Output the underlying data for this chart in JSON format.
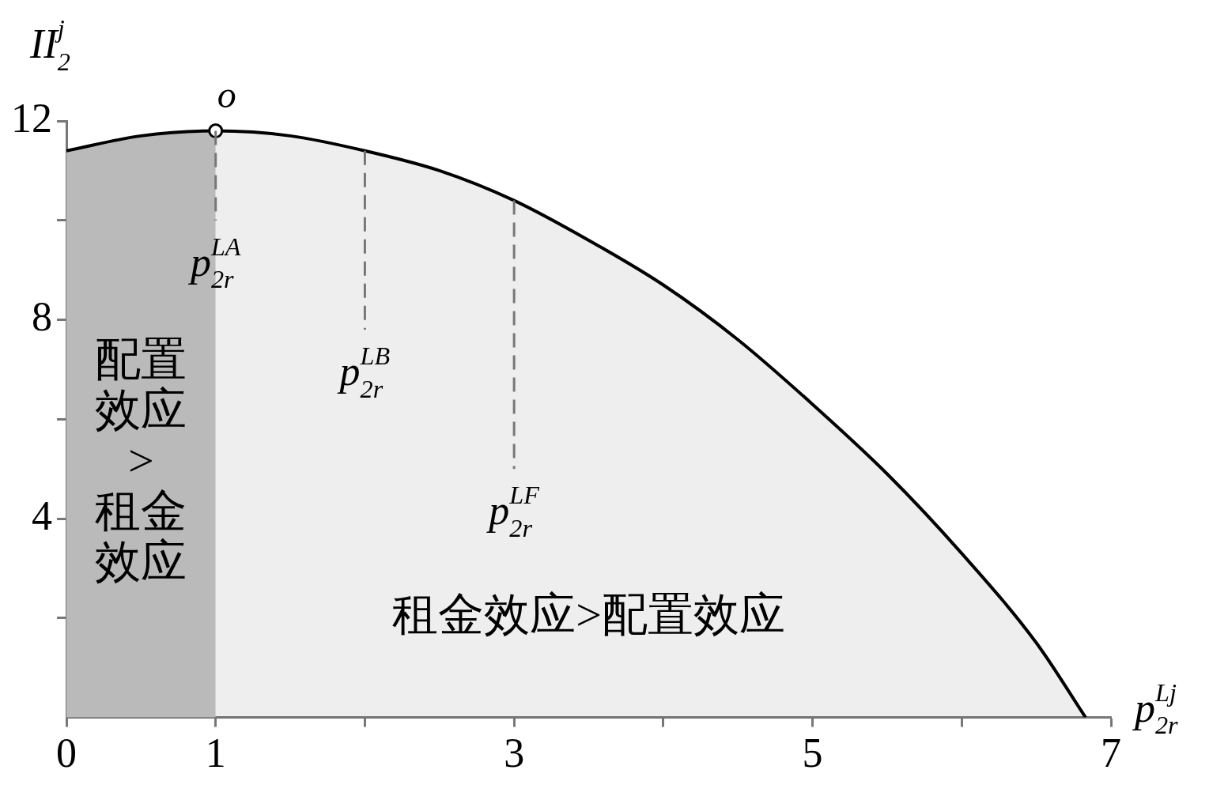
{
  "chart_data": {
    "type": "area",
    "xlabel": "p$_{2r}$$^{Lj}$",
    "ylabel": "II$_{2}$$^{j}$",
    "xlim": [
      0,
      7
    ],
    "ylim": [
      0,
      12
    ],
    "xticks": [
      0,
      1,
      {
        "value": 2,
        "label": null
      },
      3,
      {
        "value": 4,
        "label": null
      },
      5,
      {
        "value": 6,
        "label": null
      },
      7
    ],
    "yticks": [
      {
        "value": 2,
        "label": null
      },
      4,
      {
        "value": 6,
        "label": null
      },
      8,
      {
        "value": 10,
        "label": null
      },
      12
    ],
    "grid": false,
    "legend": false,
    "series": [
      {
        "color": "#000000",
        "x": [
          0,
          0.5,
          1,
          1.5,
          2,
          2.5,
          3,
          3.5,
          4,
          4.5,
          5,
          5.5,
          6,
          6.5,
          6.83
        ],
        "values": [
          11.4,
          11.7,
          11.8,
          11.7,
          11.4,
          11.0,
          10.4,
          9.6,
          8.7,
          7.6,
          6.3,
          4.9,
          3.3,
          1.5,
          0
        ]
      },
      {
        "type": "area",
        "color": "#c8c8c8",
        "x": [
          0,
          0.5,
          1
        ],
        "values": [
          11.4,
          11.7,
          11.8
        ]
      },
      {
        "type": "scatter",
        "color": "#000000",
        "marker": "circle",
        "x": [
          1
        ],
        "values": [
          11.8
        ]
      }
    ],
    "ref_lines": [
      {
        "axis": "x",
        "value": 1,
        "label": "p$_{2r}$$^{LA}$",
        "line_style": "dashed",
        "color": "#777777"
      },
      {
        "axis": "x",
        "value": 2,
        "label": "p$_{2r}$$^{LB}$",
        "line_style": "dashed",
        "color": "#777777"
      },
      {
        "axis": "x",
        "value": 3,
        "label": "p$_{2r}$$^{LF}$",
        "line_style": "dashed",
        "color": "#777777"
      }
    ],
    "annotations": [
      "配置效应>租金效应",
      "租金效应>配置效应",
      {
        "text": "o",
        "x": 1,
        "y": 11.8
      }
    ]
  }
}
